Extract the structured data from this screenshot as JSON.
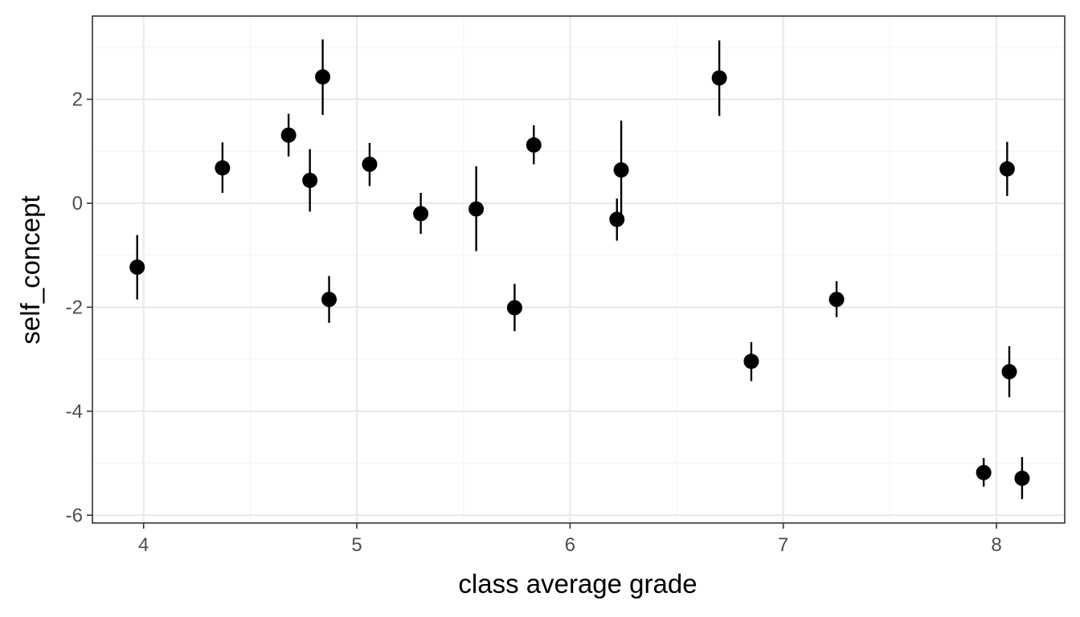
{
  "chart_data": {
    "type": "scatter",
    "xlabel": "class average grade",
    "ylabel": "self_concept",
    "xlim": [
      3.76,
      8.32
    ],
    "ylim": [
      -6.15,
      3.6
    ],
    "x_ticks": [
      4,
      5,
      6,
      7,
      8
    ],
    "x_tick_labels": [
      "4",
      "5",
      "6",
      "7",
      "8"
    ],
    "x_minor_ticks": [
      3.5,
      4.5,
      5.5,
      6.5,
      7.5
    ],
    "y_ticks": [
      -6,
      -4,
      -2,
      0,
      2
    ],
    "y_tick_labels": [
      "-6",
      "-4",
      "-2",
      "0",
      "2"
    ],
    "y_minor_ticks": [
      -5,
      -3,
      -1,
      1,
      3
    ],
    "grid": true,
    "colors": {
      "point": "#000000",
      "errorbar": "#000000",
      "grid_major": "#ebebeb",
      "grid_minor": "#f5f5f5",
      "panel_border": "#333333"
    },
    "points": [
      {
        "x": 3.97,
        "y": -1.23,
        "ymin": -1.85,
        "ymax": -0.61
      },
      {
        "x": 4.37,
        "y": 0.68,
        "ymin": 0.2,
        "ymax": 1.17
      },
      {
        "x": 4.68,
        "y": 1.31,
        "ymin": 0.9,
        "ymax": 1.72
      },
      {
        "x": 4.78,
        "y": 0.44,
        "ymin": -0.16,
        "ymax": 1.04
      },
      {
        "x": 4.84,
        "y": 2.43,
        "ymin": 1.7,
        "ymax": 3.15
      },
      {
        "x": 4.87,
        "y": -1.85,
        "ymin": -2.3,
        "ymax": -1.4
      },
      {
        "x": 5.06,
        "y": 0.75,
        "ymin": 0.33,
        "ymax": 1.16
      },
      {
        "x": 5.3,
        "y": -0.2,
        "ymin": -0.59,
        "ymax": 0.2
      },
      {
        "x": 5.56,
        "y": -0.11,
        "ymin": -0.92,
        "ymax": 0.71
      },
      {
        "x": 5.74,
        "y": -2.01,
        "ymin": -2.46,
        "ymax": -1.55
      },
      {
        "x": 5.83,
        "y": 1.12,
        "ymin": 0.75,
        "ymax": 1.5
      },
      {
        "x": 6.22,
        "y": -0.31,
        "ymin": -0.72,
        "ymax": 0.09
      },
      {
        "x": 6.24,
        "y": 0.64,
        "ymin": -0.3,
        "ymax": 1.59
      },
      {
        "x": 6.7,
        "y": 2.41,
        "ymin": 1.68,
        "ymax": 3.13
      },
      {
        "x": 6.85,
        "y": -3.04,
        "ymin": -3.42,
        "ymax": -2.67
      },
      {
        "x": 7.25,
        "y": -1.85,
        "ymin": -2.19,
        "ymax": -1.5
      },
      {
        "x": 7.94,
        "y": -5.18,
        "ymin": -5.45,
        "ymax": -4.9
      },
      {
        "x": 8.05,
        "y": 0.66,
        "ymin": 0.14,
        "ymax": 1.18
      },
      {
        "x": 8.06,
        "y": -3.24,
        "ymin": -3.73,
        "ymax": -2.75
      },
      {
        "x": 8.12,
        "y": -5.29,
        "ymin": -5.69,
        "ymax": -4.88
      }
    ]
  }
}
